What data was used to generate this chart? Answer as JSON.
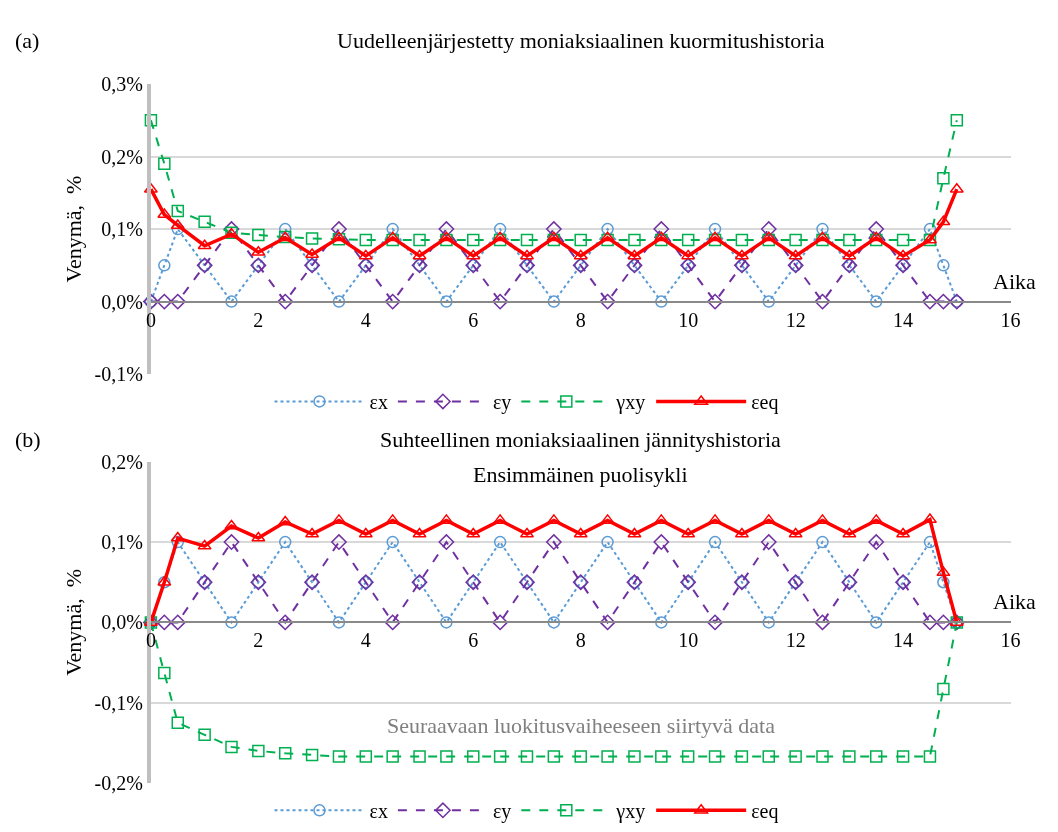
{
  "chart_data": [
    {
      "type": "line",
      "title": "Uudelleenjärjestetty moniaksiaalinen kuormitushistoria",
      "xlabel": "Aika",
      "ylabel": "Venymä,  %",
      "annotations": [
        "(a)"
      ],
      "x": [
        0,
        0.25,
        0.5,
        1,
        1.5,
        2,
        2.5,
        3,
        3.5,
        4,
        4.5,
        5,
        5.5,
        6,
        6.5,
        7,
        7.5,
        8,
        8.5,
        9,
        9.5,
        10,
        10.5,
        11,
        11.5,
        12,
        12.5,
        13,
        13.5,
        14,
        14.5,
        14.75,
        15
      ],
      "xlim": [
        0,
        16
      ],
      "xticks": [
        0,
        2,
        4,
        6,
        8,
        10,
        12,
        14,
        16
      ],
      "ylim": [
        -0.1,
        0.3
      ],
      "yticks": [
        {
          "value": -0.1,
          "label": "-0,1%"
        },
        {
          "value": 0,
          "label": "0,0%"
        },
        {
          "value": 0.1,
          "label": "0,1%"
        },
        {
          "value": 0.2,
          "label": "0,2%"
        },
        {
          "value": 0.3,
          "label": "0,3%"
        }
      ],
      "grid": "y",
      "legend": "bottom",
      "series": [
        {
          "name": "εx",
          "color": "#5b9bd5",
          "marker": "circle",
          "line_style": "dotted",
          "values": [
            0,
            0.05,
            0.1,
            0.05,
            0,
            0.05,
            0.1,
            0.05,
            0,
            0.05,
            0.1,
            0.05,
            0,
            0.05,
            0.1,
            0.05,
            0,
            0.05,
            0.1,
            0.05,
            0,
            0.05,
            0.1,
            0.05,
            0,
            0.05,
            0.1,
            0.05,
            0,
            0.05,
            0.1,
            0.05,
            0
          ]
        },
        {
          "name": "εy",
          "color": "#7030a0",
          "marker": "diamond",
          "line_style": "dashed",
          "values": [
            0,
            0,
            0,
            0.05,
            0.1,
            0.05,
            0,
            0.05,
            0.1,
            0.05,
            0,
            0.05,
            0.1,
            0.05,
            0,
            0.05,
            0.1,
            0.05,
            0,
            0.05,
            0.1,
            0.05,
            0,
            0.05,
            0.1,
            0.05,
            0,
            0.05,
            0.1,
            0.05,
            0,
            0,
            0
          ]
        },
        {
          "name": "γxy",
          "color": "#00b050",
          "marker": "square",
          "line_style": "dashed",
          "values": [
            0.25,
            0.19,
            0.125,
            0.11,
            0.095,
            0.092,
            0.089,
            0.087,
            0.086,
            0.085,
            0.085,
            0.085,
            0.085,
            0.085,
            0.085,
            0.085,
            0.085,
            0.085,
            0.085,
            0.085,
            0.085,
            0.085,
            0.085,
            0.085,
            0.085,
            0.085,
            0.085,
            0.085,
            0.085,
            0.085,
            0.085,
            0.17,
            0.25
          ]
        },
        {
          "name": "εeq",
          "color": "#ff0000",
          "marker": "triangle",
          "line_style": "solid",
          "values": [
            0.155,
            0.12,
            0.105,
            0.077,
            0.093,
            0.068,
            0.088,
            0.065,
            0.088,
            0.063,
            0.088,
            0.063,
            0.088,
            0.063,
            0.088,
            0.063,
            0.088,
            0.063,
            0.088,
            0.063,
            0.088,
            0.063,
            0.088,
            0.063,
            0.088,
            0.063,
            0.088,
            0.063,
            0.088,
            0.063,
            0.085,
            0.11,
            0.155
          ]
        }
      ]
    },
    {
      "type": "line",
      "title": "Suhteellinen moniaksiaalinen jännityshistoria",
      "xlabel": "Aika",
      "ylabel": "Venymä,  %",
      "annotations": [
        "(b)",
        "Ensimmäinen puolisykli",
        "Seuraavaan luokitusvaiheeseen siirtyvä data"
      ],
      "x": [
        0,
        0.25,
        0.5,
        1,
        1.5,
        2,
        2.5,
        3,
        3.5,
        4,
        4.5,
        5,
        5.5,
        6,
        6.5,
        7,
        7.5,
        8,
        8.5,
        9,
        9.5,
        10,
        10.5,
        11,
        11.5,
        12,
        12.5,
        13,
        13.5,
        14,
        14.5,
        14.75,
        15
      ],
      "xlim": [
        0,
        16
      ],
      "xticks": [
        0,
        2,
        4,
        6,
        8,
        10,
        12,
        14,
        16
      ],
      "ylim": [
        -0.2,
        0.2
      ],
      "yticks": [
        {
          "value": -0.2,
          "label": "-0,2%"
        },
        {
          "value": -0.1,
          "label": "-0,1%"
        },
        {
          "value": 0,
          "label": "0,0%"
        },
        {
          "value": 0.1,
          "label": "0,1%"
        },
        {
          "value": 0.2,
          "label": "0,2%"
        }
      ],
      "grid": "y",
      "legend": "bottom",
      "series": [
        {
          "name": "εx",
          "color": "#5b9bd5",
          "marker": "circle",
          "line_style": "dotted",
          "values": [
            0,
            0.05,
            0.1,
            0.05,
            0,
            0.05,
            0.1,
            0.05,
            0,
            0.05,
            0.1,
            0.05,
            0,
            0.05,
            0.1,
            0.05,
            0,
            0.05,
            0.1,
            0.05,
            0,
            0.05,
            0.1,
            0.05,
            0,
            0.05,
            0.1,
            0.05,
            0,
            0.05,
            0.1,
            0.05,
            0
          ]
        },
        {
          "name": "εy",
          "color": "#7030a0",
          "marker": "diamond",
          "line_style": "dashed",
          "values": [
            0,
            0,
            0,
            0.05,
            0.1,
            0.05,
            0,
            0.05,
            0.1,
            0.05,
            0,
            0.05,
            0.1,
            0.05,
            0,
            0.05,
            0.1,
            0.05,
            0,
            0.05,
            0.1,
            0.05,
            0,
            0.05,
            0.1,
            0.05,
            0,
            0.05,
            0.1,
            0.05,
            0,
            0,
            0
          ]
        },
        {
          "name": "γxy",
          "color": "#00b050",
          "marker": "square",
          "line_style": "dashed",
          "values": [
            0,
            -0.063,
            -0.125,
            -0.14,
            -0.155,
            -0.16,
            -0.163,
            -0.165,
            -0.167,
            -0.167,
            -0.167,
            -0.167,
            -0.167,
            -0.167,
            -0.167,
            -0.167,
            -0.167,
            -0.167,
            -0.167,
            -0.167,
            -0.167,
            -0.167,
            -0.167,
            -0.167,
            -0.167,
            -0.167,
            -0.167,
            -0.167,
            -0.167,
            -0.167,
            -0.167,
            -0.083,
            0
          ]
        },
        {
          "name": "εeq",
          "color": "#ff0000",
          "marker": "triangle",
          "line_style": "solid",
          "values": [
            0,
            0.05,
            0.105,
            0.095,
            0.12,
            0.105,
            0.125,
            0.11,
            0.127,
            0.11,
            0.127,
            0.11,
            0.127,
            0.11,
            0.127,
            0.11,
            0.127,
            0.11,
            0.127,
            0.11,
            0.127,
            0.11,
            0.127,
            0.11,
            0.127,
            0.11,
            0.127,
            0.11,
            0.127,
            0.11,
            0.128,
            0.062,
            0
          ]
        }
      ]
    }
  ]
}
